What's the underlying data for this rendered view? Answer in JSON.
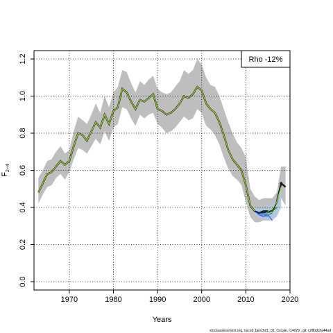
{
  "chart_data": {
    "type": "line",
    "xlabel": "Years",
    "ylabel": "F",
    "ylabel_sub": "2−4",
    "xlim": [
      1962,
      2020
    ],
    "ylim": [
      0.0,
      1.2
    ],
    "xticks": [
      1970,
      1980,
      1990,
      2000,
      2010,
      2020
    ],
    "yticks": [
      "0.0",
      "0.2",
      "0.4",
      "0.6",
      "0.8",
      "1.0",
      "1.2"
    ],
    "grid": true,
    "legend_position": "top-right",
    "legend_text": "Rho -12%",
    "footer_text": "stockassessment.org,  nscod_bench21_01_Cscale,  r14079 ,  git: c28bdc2a44ad",
    "colors": {
      "band": "#bebebe",
      "main": "#1a1a1a",
      "peel_lines": [
        "#9acd32",
        "#228b22",
        "#008b8b",
        "#1e90ff",
        "#6a5acd",
        "#00008b"
      ],
      "peel_band": "#aec8e6"
    },
    "years": [
      1963,
      1964,
      1965,
      1966,
      1967,
      1968,
      1969,
      1970,
      1971,
      1972,
      1973,
      1974,
      1975,
      1976,
      1977,
      1978,
      1979,
      1980,
      1981,
      1982,
      1983,
      1984,
      1985,
      1986,
      1987,
      1988,
      1989,
      1990,
      1991,
      1992,
      1993,
      1994,
      1995,
      1996,
      1997,
      1998,
      1999,
      2000,
      2001,
      2002,
      2003,
      2004,
      2005,
      2006,
      2007,
      2008,
      2009,
      2010,
      2011,
      2012,
      2013,
      2014,
      2015,
      2016,
      2017,
      2018,
      2019
    ],
    "estimate": [
      0.48,
      0.53,
      0.58,
      0.59,
      0.62,
      0.65,
      0.63,
      0.65,
      0.73,
      0.8,
      0.79,
      0.76,
      0.81,
      0.86,
      0.83,
      0.9,
      0.85,
      0.92,
      0.94,
      1.04,
      1.02,
      0.97,
      0.93,
      0.98,
      0.97,
      0.99,
      1.01,
      0.93,
      0.92,
      0.9,
      0.91,
      0.93,
      0.96,
      1.0,
      0.99,
      1.01,
      1.05,
      1.03,
      0.96,
      0.93,
      0.91,
      0.86,
      0.79,
      0.71,
      0.66,
      0.63,
      0.6,
      0.52,
      0.41,
      0.38,
      0.37,
      0.38,
      0.38,
      0.38,
      0.43,
      0.53,
      0.51
    ],
    "upper": [
      0.56,
      0.6,
      0.65,
      0.66,
      0.7,
      0.73,
      0.69,
      0.71,
      0.81,
      0.89,
      0.87,
      0.85,
      0.9,
      0.96,
      0.91,
      1.0,
      0.94,
      1.02,
      1.05,
      1.14,
      1.13,
      1.07,
      1.02,
      1.08,
      1.06,
      1.09,
      1.11,
      1.04,
      1.02,
      1.01,
      1.02,
      1.05,
      1.08,
      1.14,
      1.12,
      1.14,
      1.2,
      1.17,
      1.1,
      1.06,
      1.05,
      1.0,
      0.93,
      0.86,
      0.8,
      0.75,
      0.72,
      0.67,
      0.5,
      0.46,
      0.44,
      0.45,
      0.45,
      0.45,
      0.48,
      0.62,
      0.62
    ],
    "lower": [
      0.42,
      0.47,
      0.51,
      0.52,
      0.56,
      0.58,
      0.55,
      0.59,
      0.66,
      0.72,
      0.71,
      0.69,
      0.73,
      0.77,
      0.74,
      0.81,
      0.76,
      0.83,
      0.85,
      0.94,
      0.93,
      0.88,
      0.84,
      0.9,
      0.88,
      0.9,
      0.91,
      0.85,
      0.83,
      0.8,
      0.81,
      0.83,
      0.86,
      0.89,
      0.87,
      0.88,
      0.93,
      0.91,
      0.84,
      0.82,
      0.79,
      0.74,
      0.67,
      0.61,
      0.57,
      0.55,
      0.52,
      0.43,
      0.35,
      0.32,
      0.32,
      0.33,
      0.33,
      0.34,
      0.36,
      0.45,
      0.41
    ],
    "peels": [
      {
        "end": 2018,
        "values": [
          0.38,
          0.37,
          0.37,
          0.38,
          0.39,
          0.43,
          0.51
        ]
      },
      {
        "end": 2017,
        "values": [
          0.38,
          0.37,
          0.37,
          0.37,
          0.38,
          0.4
        ]
      },
      {
        "end": 2016,
        "values": [
          0.38,
          0.36,
          0.36,
          0.36,
          0.37
        ]
      },
      {
        "end": 2015,
        "values": [
          0.38,
          0.36,
          0.36,
          0.35
        ]
      },
      {
        "end": 2016,
        "values": [
          0.38,
          0.36,
          0.35,
          0.36,
          0.33
        ]
      },
      {
        "end": 2015,
        "values": [
          0.38,
          0.37,
          0.37,
          0.38
        ]
      }
    ],
    "peel_band": {
      "years": [
        2012,
        2013,
        2014,
        2015,
        2016,
        2017,
        2018
      ],
      "upper": [
        0.4,
        0.39,
        0.4,
        0.41,
        0.42,
        0.45,
        0.5
      ],
      "lower": [
        0.36,
        0.34,
        0.34,
        0.33,
        0.33,
        0.35,
        0.4
      ]
    }
  }
}
